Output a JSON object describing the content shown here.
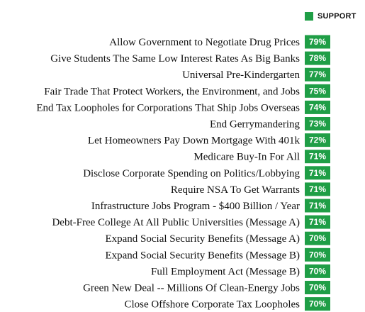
{
  "colors": {
    "support": "#1f9e46",
    "text": "#111111",
    "value_text": "#ffffff"
  },
  "chart_data": {
    "type": "bar",
    "legend": {
      "items": [
        "SUPPORT"
      ],
      "position": "top-right"
    },
    "categories": [
      "Allow Government to Negotiate Drug Prices",
      "Give Students The Same Low Interest Rates As Big Banks",
      "Universal Pre-Kindergarten",
      "Fair Trade That Protect Workers, the Environment, and Jobs",
      "End Tax Loopholes for Corporations That Ship Jobs Overseas",
      "End Gerrymandering",
      "Let Homeowners Pay Down Mortgage With 401k",
      "Medicare Buy-In For All",
      "Disclose Corporate Spending on Politics/Lobbying",
      "Require NSA To Get Warrants",
      "Infrastructure Jobs Program - $400 Billion / Year",
      "Debt-Free College At All Public Universities (Message A)",
      "Expand Social Security Benefits (Message A)",
      "Expand Social Security Benefits (Message B)",
      "Full Employment Act (Message B)",
      "Green New Deal -- Millions Of Clean-Energy Jobs",
      "Close Offshore Corporate Tax Loopholes"
    ],
    "series": [
      {
        "name": "SUPPORT",
        "values": [
          79,
          78,
          77,
          75,
          74,
          73,
          72,
          71,
          71,
          71,
          71,
          71,
          70,
          70,
          70,
          70,
          70
        ],
        "labels": [
          "79%",
          "78%",
          "77%",
          "75%",
          "74%",
          "73%",
          "72%",
          "71%",
          "71%",
          "71%",
          "71%",
          "71%",
          "70%",
          "70%",
          "70%",
          "70%",
          "70%"
        ]
      }
    ],
    "title": "",
    "xlabel": "",
    "ylabel": "",
    "grid": false
  }
}
